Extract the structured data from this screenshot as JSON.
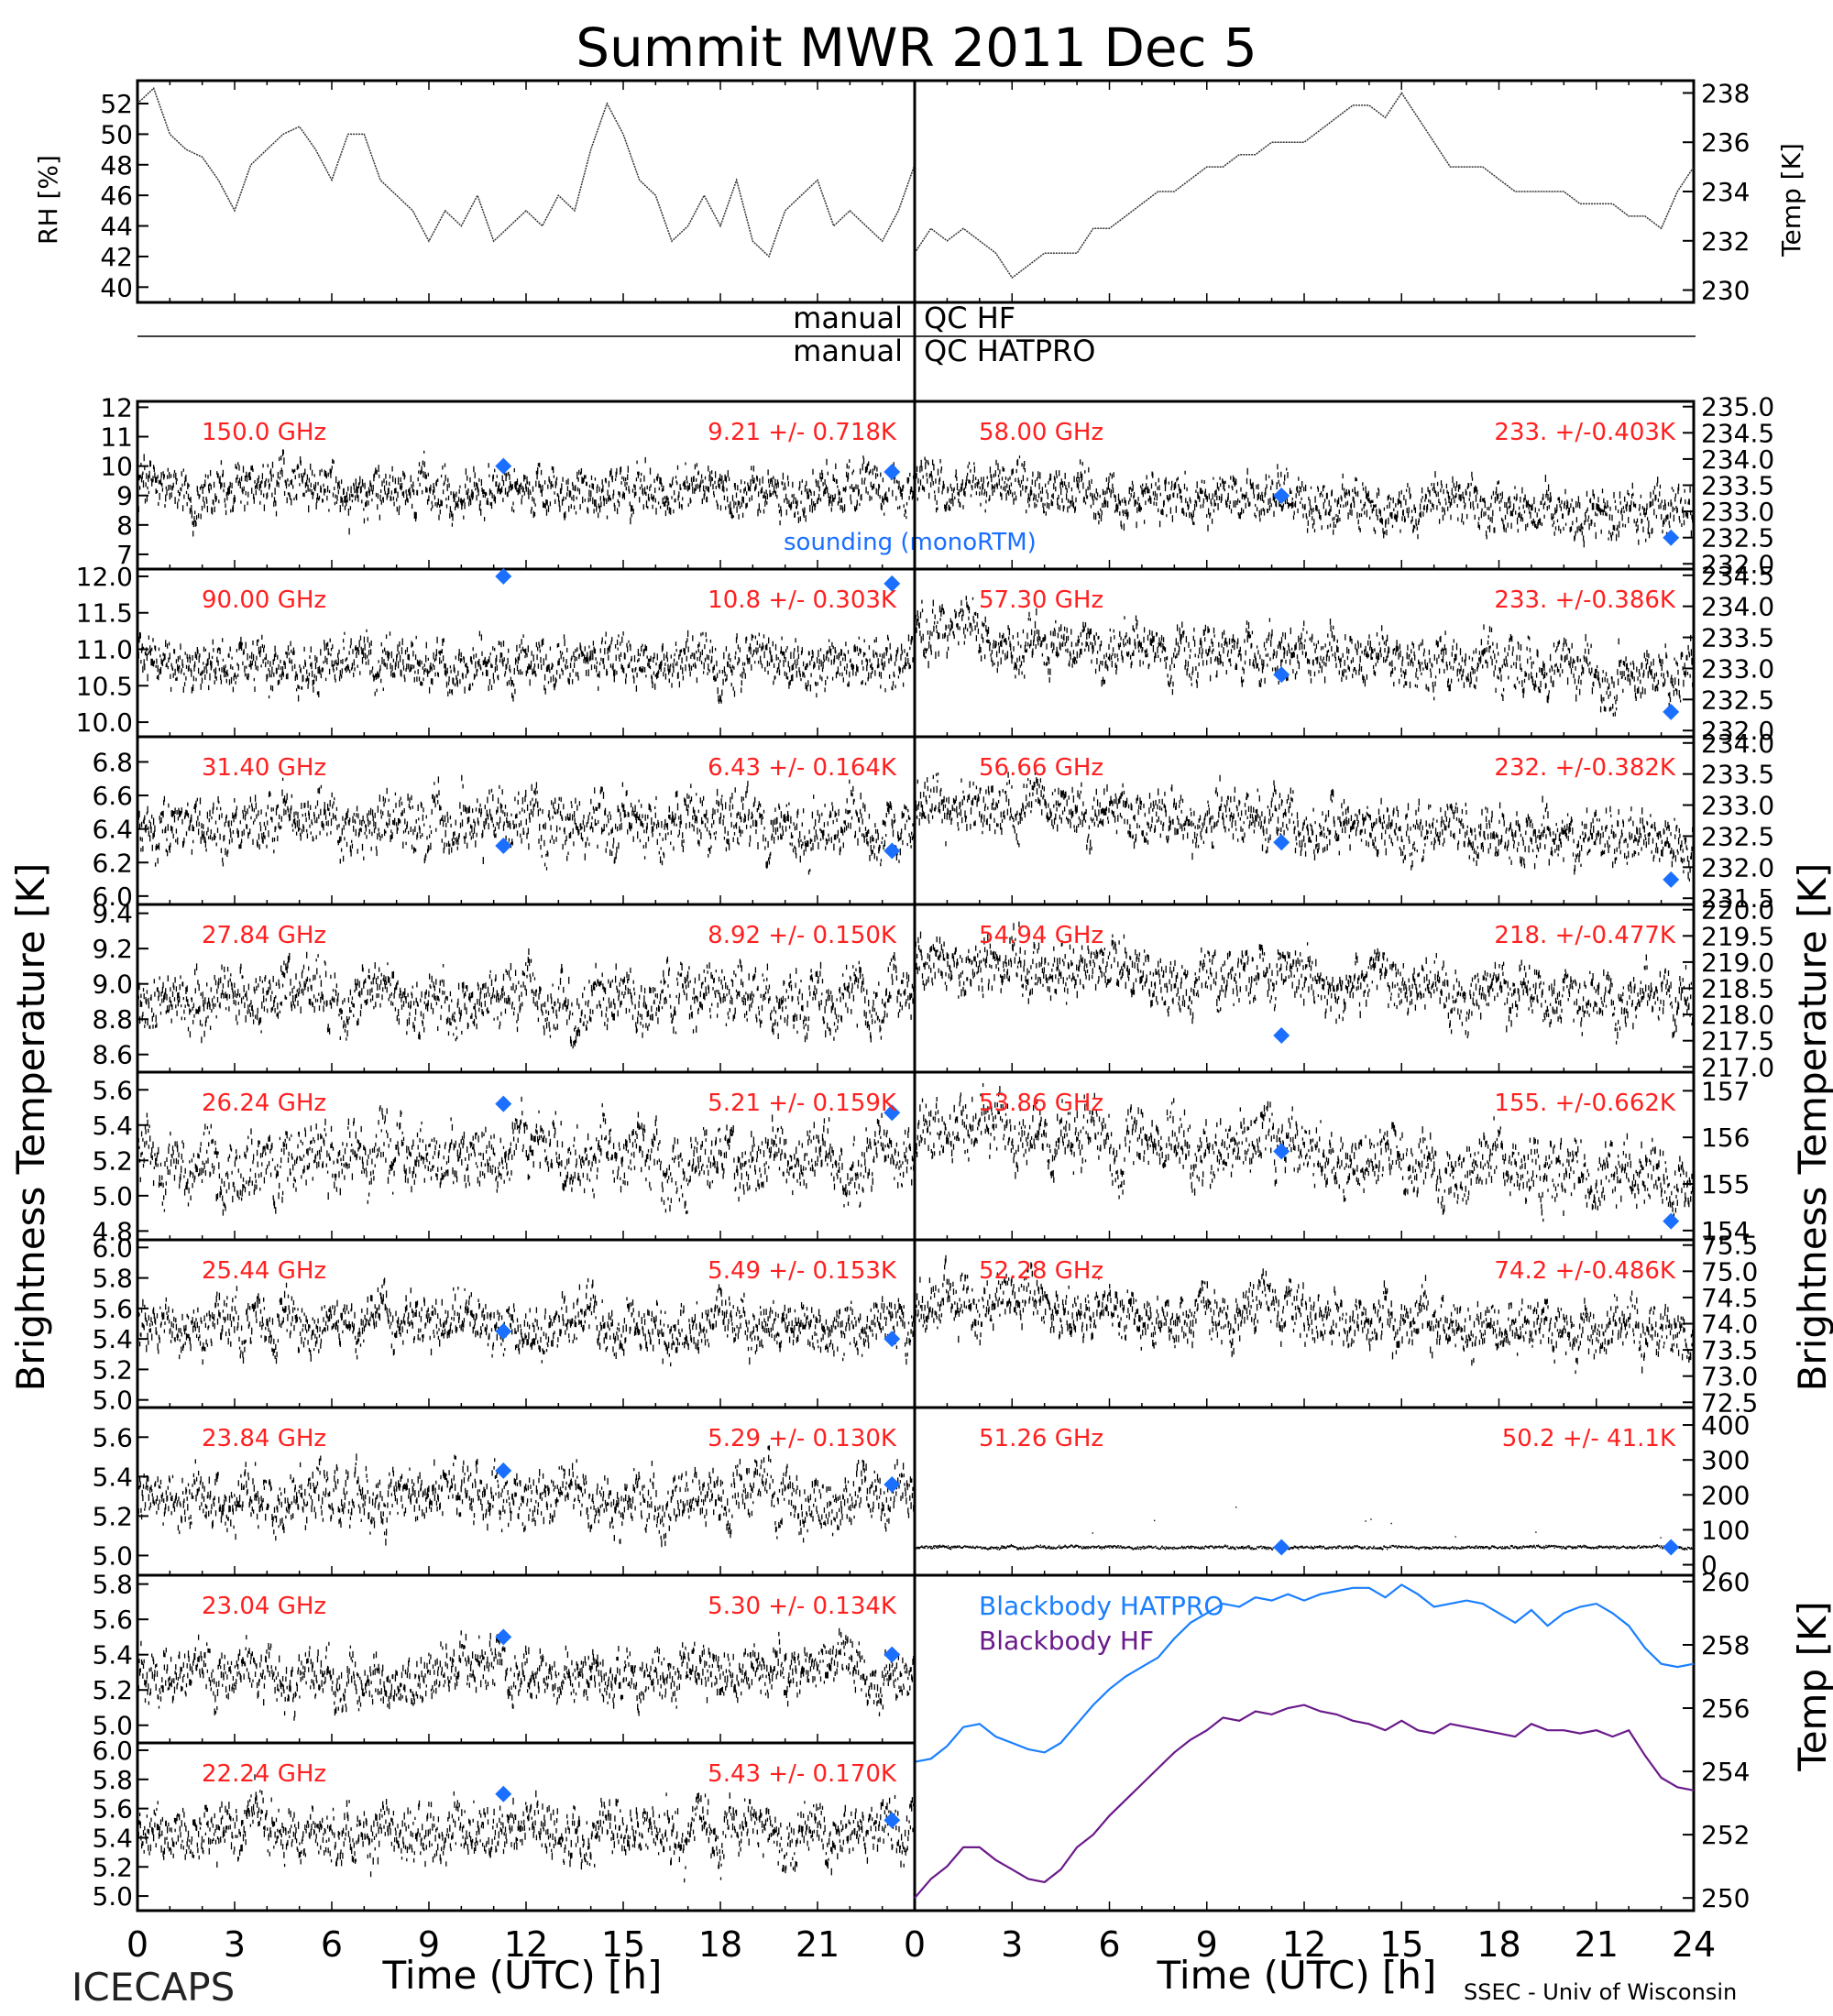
{
  "title": "Summit MWR 2011 Dec  5",
  "project": "ICECAPS",
  "credit": "SSEC - Univ of Wisconsin",
  "colors": {
    "annotation": "#ff2020",
    "sounding": "#1a6fff",
    "bb_hatpro": "#1a7fff",
    "bb_hf": "#6a1a8a"
  },
  "flags": {
    "hf_prefix": "manual",
    "hf_suffix": "QC HF",
    "hat_prefix": "manual",
    "hat_suffix": "QC HATPRO"
  },
  "axis_labels": {
    "rh": "RH [%]",
    "temp_top": "Temp [K]",
    "bt_left": "Brightness Temperature [K]",
    "bt_right": "Brightness Temperature [K]",
    "temp_bb": "Temp [K]",
    "xlabel": "Time (UTC) [h]"
  },
  "legend": {
    "sounding": "sounding (monoRTM)",
    "bb_hatpro": "Blackbody HATPRO",
    "bb_hf": "Blackbody HF"
  },
  "x_ticks": [
    "0",
    "3",
    "6",
    "9",
    "12",
    "15",
    "18",
    "21",
    "24"
  ],
  "chart_data": [
    {
      "id": "rh",
      "type": "line",
      "ylabel": "RH [%]",
      "xlim": [
        0,
        24
      ],
      "ylim": [
        39,
        53.5
      ],
      "yticks": [
        "40",
        "42",
        "44",
        "46",
        "48",
        "50",
        "52"
      ],
      "x": [
        0,
        0.5,
        1,
        1.5,
        2,
        2.5,
        3,
        3.5,
        4,
        4.5,
        5,
        5.5,
        6,
        6.5,
        7,
        7.5,
        8,
        8.5,
        9,
        9.5,
        10,
        10.5,
        11,
        11.5,
        12,
        12.5,
        13,
        13.5,
        14,
        14.5,
        15,
        15.5,
        16,
        16.5,
        17,
        17.5,
        18,
        18.5,
        19,
        19.5,
        20,
        20.5,
        21,
        21.5,
        22,
        22.5,
        23,
        23.5,
        24
      ],
      "y": [
        52,
        53,
        50,
        49,
        48.5,
        47,
        45,
        48,
        49,
        50,
        50.5,
        49,
        47,
        50,
        50,
        47,
        46,
        45,
        43,
        45,
        44,
        46,
        43,
        44,
        45,
        44,
        46,
        45,
        49,
        52,
        50,
        47,
        46,
        43,
        44,
        46,
        44,
        47,
        43,
        42,
        45,
        46,
        47,
        44,
        45,
        44,
        43,
        45,
        48
      ]
    },
    {
      "id": "temp_top",
      "type": "line",
      "ylabel": "Temp [K]",
      "xlim": [
        0,
        24
      ],
      "ylim": [
        229.5,
        238.5
      ],
      "yticks": [
        "230",
        "232",
        "234",
        "236",
        "238"
      ],
      "x": [
        0,
        0.5,
        1,
        1.5,
        2,
        2.5,
        3,
        3.5,
        4,
        4.5,
        5,
        5.5,
        6,
        6.5,
        7,
        7.5,
        8,
        8.5,
        9,
        9.5,
        10,
        10.5,
        11,
        11.5,
        12,
        12.5,
        13,
        13.5,
        14,
        14.5,
        15,
        15.5,
        16,
        16.5,
        17,
        17.5,
        18,
        18.5,
        19,
        19.5,
        20,
        20.5,
        21,
        21.5,
        22,
        22.5,
        23,
        23.5,
        24
      ],
      "y": [
        231.5,
        232.5,
        232,
        232.5,
        232,
        231.5,
        230.5,
        231,
        231.5,
        231.5,
        231.5,
        232.5,
        232.5,
        233,
        233.5,
        234,
        234,
        234.5,
        235,
        235,
        235.5,
        235.5,
        236,
        236,
        236,
        236.5,
        237,
        237.5,
        237.5,
        237,
        238,
        237,
        236,
        235,
        235,
        235,
        234.5,
        234,
        234,
        234,
        234,
        233.5,
        233.5,
        233.5,
        233,
        233,
        232.5,
        234,
        235
      ]
    },
    {
      "id": "c150",
      "type": "scatter",
      "freq_label": "150.0 GHz",
      "stat_label": "9.21 +/- 0.718K",
      "side": "left",
      "ylim": [
        6.5,
        12.2
      ],
      "yticks": [
        "7",
        "8",
        "9",
        "10",
        "11",
        "12"
      ],
      "mean": 9.2,
      "amp": 0.72,
      "trend": 0,
      "seed": 11,
      "sounding": [
        {
          "x": 11.3,
          "y": 10.0
        },
        {
          "x": 23.3,
          "y": 9.8
        }
      ]
    },
    {
      "id": "c90",
      "type": "scatter",
      "freq_label": "90.00 GHz",
      "stat_label": "10.8 +/- 0.303K",
      "side": "left",
      "ylim": [
        9.8,
        12.1
      ],
      "yticks": [
        "10.0",
        "10.5",
        "11.0",
        "11.5",
        "12.0"
      ],
      "mean": 10.8,
      "amp": 0.3,
      "trend": 0,
      "seed": 12,
      "sounding": [
        {
          "x": 11.3,
          "y": 12.0
        },
        {
          "x": 23.3,
          "y": 11.9
        }
      ]
    },
    {
      "id": "c3140",
      "type": "scatter",
      "freq_label": "31.40 GHz",
      "stat_label": "6.43 +/- 0.164K",
      "side": "left",
      "ylim": [
        5.95,
        6.95
      ],
      "yticks": [
        "6.0",
        "6.2",
        "6.4",
        "6.6",
        "6.8"
      ],
      "mean": 6.43,
      "amp": 0.16,
      "trend": 0,
      "seed": 13,
      "sounding": [
        {
          "x": 11.3,
          "y": 6.3
        },
        {
          "x": 23.3,
          "y": 6.27
        }
      ]
    },
    {
      "id": "c2784",
      "type": "scatter",
      "freq_label": "27.84 GHz",
      "stat_label": "8.92 +/- 0.150K",
      "side": "left",
      "ylim": [
        8.5,
        9.45
      ],
      "yticks": [
        "8.6",
        "8.8",
        "9.0",
        "9.2",
        "9.4"
      ],
      "mean": 8.92,
      "amp": 0.15,
      "trend": 0,
      "seed": 14,
      "sounding": []
    },
    {
      "id": "c2624",
      "type": "scatter",
      "freq_label": "26.24 GHz",
      "stat_label": "5.21 +/- 0.159K",
      "side": "left",
      "ylim": [
        4.75,
        5.7
      ],
      "yticks": [
        "4.8",
        "5.0",
        "5.2",
        "5.4",
        "5.6"
      ],
      "mean": 5.21,
      "amp": 0.16,
      "trend": 0,
      "seed": 15,
      "sounding": [
        {
          "x": 11.3,
          "y": 5.52
        },
        {
          "x": 23.3,
          "y": 5.47
        }
      ]
    },
    {
      "id": "c2544",
      "type": "scatter",
      "freq_label": "25.44 GHz",
      "stat_label": "5.49 +/- 0.153K",
      "side": "left",
      "ylim": [
        4.95,
        6.05
      ],
      "yticks": [
        "5.0",
        "5.2",
        "5.4",
        "5.6",
        "5.8",
        "6.0"
      ],
      "mean": 5.49,
      "amp": 0.15,
      "trend": 0,
      "seed": 16,
      "sounding": [
        {
          "x": 11.3,
          "y": 5.45
        },
        {
          "x": 23.3,
          "y": 5.4
        }
      ]
    },
    {
      "id": "c2384",
      "type": "scatter",
      "freq_label": "23.84 GHz",
      "stat_label": "5.29 +/- 0.130K",
      "side": "left",
      "ylim": [
        4.9,
        5.75
      ],
      "yticks": [
        "5.0",
        "5.2",
        "5.4",
        "5.6"
      ],
      "mean": 5.29,
      "amp": 0.13,
      "trend": 0,
      "seed": 17,
      "sounding": [
        {
          "x": 11.3,
          "y": 5.43
        },
        {
          "x": 23.3,
          "y": 5.36
        }
      ]
    },
    {
      "id": "c2304",
      "type": "scatter",
      "freq_label": "23.04 GHz",
      "stat_label": "5.30 +/- 0.134K",
      "side": "left",
      "ylim": [
        4.9,
        5.85
      ],
      "yticks": [
        "5.0",
        "5.2",
        "5.4",
        "5.6",
        "5.8"
      ],
      "mean": 5.3,
      "amp": 0.13,
      "trend": 0,
      "seed": 18,
      "sounding": [
        {
          "x": 11.3,
          "y": 5.5
        },
        {
          "x": 23.3,
          "y": 5.4
        }
      ]
    },
    {
      "id": "c2224",
      "type": "scatter",
      "freq_label": "22.24 GHz",
      "stat_label": "5.43 +/- 0.170K",
      "side": "left",
      "ylim": [
        4.9,
        6.05
      ],
      "yticks": [
        "5.0",
        "5.2",
        "5.4",
        "5.6",
        "5.8",
        "6.0"
      ],
      "mean": 5.43,
      "amp": 0.17,
      "trend": 0,
      "seed": 19,
      "sounding": [
        {
          "x": 11.3,
          "y": 5.7
        },
        {
          "x": 23.3,
          "y": 5.52
        }
      ]
    },
    {
      "id": "c5800",
      "type": "scatter",
      "freq_label": "58.00 GHz",
      "stat_label": "233. +/-0.403K",
      "side": "right",
      "ylim": [
        231.9,
        235.1
      ],
      "yticks": [
        "232.0",
        "232.5",
        "233.0",
        "233.5",
        "234.0",
        "234.5",
        "235.0"
      ],
      "mean": 233.2,
      "amp": 0.4,
      "trend": -0.6,
      "seed": 21,
      "sounding": [
        {
          "x": 11.3,
          "y": 233.3
        },
        {
          "x": 23.3,
          "y": 232.5
        }
      ]
    },
    {
      "id": "c5730",
      "type": "scatter",
      "freq_label": "57.30 GHz",
      "stat_label": "233. +/-0.386K",
      "side": "right",
      "ylim": [
        231.9,
        234.6
      ],
      "yticks": [
        "232.0",
        "232.5",
        "233.0",
        "233.5",
        "234.0",
        "234.5"
      ],
      "mean": 233.2,
      "amp": 0.38,
      "trend": -0.6,
      "seed": 22,
      "sounding": [
        {
          "x": 11.3,
          "y": 232.9
        },
        {
          "x": 23.3,
          "y": 232.3
        }
      ]
    },
    {
      "id": "c5666",
      "type": "scatter",
      "freq_label": "56.66 GHz",
      "stat_label": "232. +/-0.382K",
      "side": "right",
      "ylim": [
        231.4,
        234.1
      ],
      "yticks": [
        "231.5",
        "232.0",
        "232.5",
        "233.0",
        "233.5",
        "234.0"
      ],
      "mean": 232.7,
      "amp": 0.38,
      "trend": -0.6,
      "seed": 23,
      "sounding": [
        {
          "x": 11.3,
          "y": 232.4
        },
        {
          "x": 23.3,
          "y": 231.8
        }
      ]
    },
    {
      "id": "c5494",
      "type": "scatter",
      "freq_label": "54.94 GHz",
      "stat_label": "218. +/-0.477K",
      "side": "right",
      "ylim": [
        216.9,
        220.1
      ],
      "yticks": [
        "217.0",
        "217.5",
        "218.0",
        "218.5",
        "219.0",
        "219.5",
        "220.0"
      ],
      "mean": 218.6,
      "amp": 0.47,
      "trend": -0.8,
      "seed": 24,
      "sounding": [
        {
          "x": 11.3,
          "y": 217.6
        }
      ]
    },
    {
      "id": "c5386",
      "type": "scatter",
      "freq_label": "53.86 GHz",
      "stat_label": "155. +/-0.662K",
      "side": "right",
      "ylim": [
        153.8,
        157.4
      ],
      "yticks": [
        "154",
        "155",
        "156",
        "157"
      ],
      "mean": 155.7,
      "amp": 0.6,
      "trend": -1.3,
      "seed": 25,
      "sounding": [
        {
          "x": 11.3,
          "y": 155.7
        },
        {
          "x": 23.3,
          "y": 154.2
        }
      ]
    },
    {
      "id": "c5228",
      "type": "scatter",
      "freq_label": "52.28 GHz",
      "stat_label": "74.2 +/-0.486K",
      "side": "right",
      "ylim": [
        72.4,
        75.6
      ],
      "yticks": [
        "72.5",
        "73.0",
        "73.5",
        "74.0",
        "74.5",
        "75.0",
        "75.5"
      ],
      "mean": 74.1,
      "amp": 0.45,
      "trend": -0.6,
      "seed": 26,
      "sounding": []
    },
    {
      "id": "c5126",
      "type": "scatter",
      "freq_label": "51.26 GHz",
      "stat_label": "50.2 +/- 41.1K",
      "side": "right",
      "ylim": [
        -30,
        450
      ],
      "yticks": [
        "0",
        "100",
        "200",
        "300",
        "400"
      ],
      "mean": 50.2,
      "amp": 4,
      "trend": 0,
      "seed": 27,
      "spikes": true,
      "sounding": [
        {
          "x": 11.3,
          "y": 50
        },
        {
          "x": 23.3,
          "y": 50
        }
      ]
    },
    {
      "id": "bb",
      "type": "line",
      "ylabel": "Temp [K]",
      "xlim": [
        0,
        24
      ],
      "ylim": [
        249.6,
        260.2
      ],
      "yticks": [
        "250",
        "252",
        "254",
        "256",
        "258",
        "260"
      ],
      "series": [
        {
          "name": "Blackbody HATPRO",
          "x": [
            0,
            0.5,
            1,
            1.5,
            2,
            2.5,
            3,
            3.5,
            4,
            4.5,
            5,
            5.5,
            6,
            6.5,
            7,
            7.5,
            8,
            8.5,
            9,
            9.5,
            10,
            10.5,
            11,
            11.5,
            12,
            12.5,
            13,
            13.5,
            14,
            14.5,
            15,
            15.5,
            16,
            16.5,
            17,
            17.5,
            18,
            18.5,
            19,
            19.5,
            20,
            20.5,
            21,
            21.5,
            22,
            22.5,
            23,
            23.5,
            24
          ],
          "y": [
            254.3,
            254.4,
            254.8,
            255.4,
            255.5,
            255.1,
            254.9,
            254.7,
            254.6,
            254.9,
            255.5,
            256.1,
            256.6,
            257.0,
            257.3,
            257.6,
            258.2,
            258.7,
            259.0,
            259.3,
            259.2,
            259.5,
            259.4,
            259.6,
            259.4,
            259.6,
            259.7,
            259.8,
            259.8,
            259.5,
            259.9,
            259.6,
            259.2,
            259.3,
            259.4,
            259.3,
            259.0,
            258.7,
            259.1,
            258.6,
            259.0,
            259.2,
            259.3,
            259.0,
            258.6,
            257.9,
            257.4,
            257.3,
            257.4
          ]
        },
        {
          "name": "Blackbody HF",
          "x": [
            0,
            0.5,
            1,
            1.5,
            2,
            2.5,
            3,
            3.5,
            4,
            4.5,
            5,
            5.5,
            6,
            6.5,
            7,
            7.5,
            8,
            8.5,
            9,
            9.5,
            10,
            10.5,
            11,
            11.5,
            12,
            12.5,
            13,
            13.5,
            14,
            14.5,
            15,
            15.5,
            16,
            16.5,
            17,
            17.5,
            18,
            18.5,
            19,
            19.5,
            20,
            20.5,
            21,
            21.5,
            22,
            22.5,
            23,
            23.5,
            24
          ],
          "y": [
            250.0,
            250.6,
            251.0,
            251.6,
            251.6,
            251.2,
            250.9,
            250.6,
            250.5,
            250.9,
            251.6,
            252.0,
            252.6,
            253.1,
            253.6,
            254.1,
            254.6,
            255.0,
            255.3,
            255.7,
            255.6,
            255.9,
            255.8,
            256.0,
            256.1,
            255.9,
            255.8,
            255.6,
            255.5,
            255.3,
            255.6,
            255.3,
            255.2,
            255.5,
            255.4,
            255.3,
            255.2,
            255.1,
            255.5,
            255.3,
            255.3,
            255.2,
            255.3,
            255.1,
            255.3,
            254.5,
            253.8,
            253.5,
            253.4
          ]
        }
      ]
    }
  ]
}
